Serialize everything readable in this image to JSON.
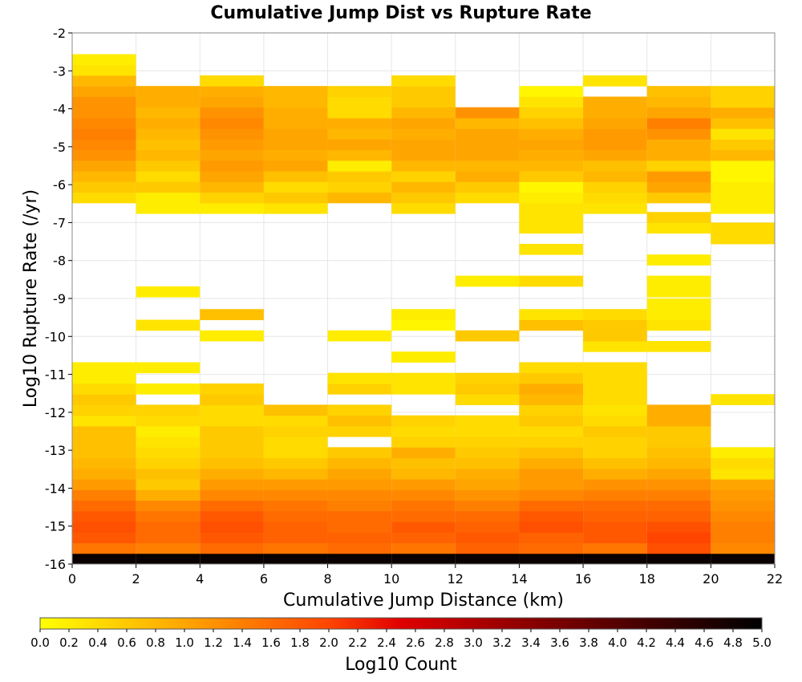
{
  "chart_data": {
    "type": "heatmap",
    "title": "Cumulative Jump Dist vs Rupture Rate",
    "xlabel": "Cumulative Jump Distance (km)",
    "ylabel": "Log10 Rupture Rate (/yr)",
    "xlim": [
      0,
      22
    ],
    "ylim": [
      -16,
      -2
    ],
    "x_bin_width": 2,
    "y_bin_width": 0.28,
    "x_ticks": [
      "0",
      "2",
      "4",
      "6",
      "8",
      "10",
      "12",
      "14",
      "16",
      "18",
      "20",
      "22"
    ],
    "y_ticks": [
      "-2",
      "-3",
      "-4",
      "-5",
      "-6",
      "-7",
      "-8",
      "-9",
      "-10",
      "-11",
      "-12",
      "-13",
      "-14",
      "-15",
      "-16"
    ],
    "colorbar": {
      "label": "Log10 Count",
      "range": [
        0.0,
        5.0
      ],
      "ticks": [
        "0.0",
        "0.2",
        "0.4",
        "0.6",
        "0.8",
        "1.0",
        "1.2",
        "1.4",
        "1.6",
        "1.8",
        "2.0",
        "2.2",
        "2.4",
        "2.6",
        "2.8",
        "3.0",
        "3.2",
        "3.4",
        "3.6",
        "3.8",
        "4.0",
        "4.2",
        "4.4",
        "4.6",
        "4.8",
        "5.0"
      ],
      "colors": [
        "#ffff00",
        "#ffa500",
        "#ff4500",
        "#e00000",
        "#800000",
        "#000000"
      ]
    },
    "grid": true,
    "cells": [
      {
        "x_bin": 0,
        "rates": [
          -16.0,
          -15.72,
          -15.44,
          -15.16,
          -14.88,
          -14.6,
          -14.32,
          -14.04,
          -13.76,
          -13.48,
          -13.2,
          -12.92,
          -12.64,
          -12.36,
          -12.08,
          -11.8,
          -11.52,
          -11.24,
          -10.96,
          -6.48,
          -6.2,
          -5.92,
          -5.64,
          -5.36,
          -5.08,
          -4.8,
          -4.52,
          -4.24,
          -3.96,
          -3.68,
          -3.4,
          -3.12,
          -2.84
        ],
        "log10_counts": [
          4.9,
          1.5,
          1.8,
          1.9,
          1.8,
          1.6,
          1.4,
          1.1,
          0.9,
          0.8,
          0.7,
          0.7,
          0.7,
          0.3,
          0.5,
          0.6,
          0.4,
          0.2,
          0.2,
          0.4,
          0.6,
          0.8,
          1.0,
          1.2,
          1.3,
          1.4,
          1.3,
          1.2,
          1.2,
          1.0,
          0.8,
          0.3,
          0.2
        ]
      },
      {
        "x_bin": 1,
        "rates": [
          -16.0,
          -15.72,
          -15.44,
          -15.16,
          -14.88,
          -14.6,
          -14.32,
          -14.04,
          -13.76,
          -13.48,
          -13.2,
          -12.92,
          -12.64,
          -12.36,
          -12.08,
          -11.52,
          -10.96,
          -9.84,
          -8.96,
          -6.76,
          -6.48,
          -6.2,
          -5.92,
          -5.64,
          -5.36,
          -5.08,
          -4.8,
          -4.52,
          -4.24,
          -3.96,
          -3.68
        ],
        "log10_counts": [
          4.9,
          1.4,
          1.6,
          1.6,
          1.5,
          1.3,
          0.9,
          0.6,
          0.7,
          0.5,
          0.4,
          0.3,
          0.2,
          0.4,
          0.5,
          0.2,
          0.2,
          0.3,
          0.2,
          0.2,
          0.2,
          0.6,
          0.4,
          0.6,
          0.8,
          0.7,
          0.8,
          0.9,
          0.8,
          0.9,
          0.9
        ]
      },
      {
        "x_bin": 2,
        "rates": [
          -16.0,
          -15.72,
          -15.44,
          -15.16,
          -14.88,
          -14.6,
          -14.32,
          -14.04,
          -13.76,
          -13.48,
          -13.2,
          -12.92,
          -12.64,
          -12.36,
          -12.08,
          -11.8,
          -11.52,
          -10.12,
          -9.56,
          -6.76,
          -6.48,
          -6.2,
          -5.92,
          -5.64,
          -5.36,
          -5.08,
          -4.8,
          -4.52,
          -4.24,
          -3.96,
          -3.68,
          -3.4
        ],
        "log10_counts": [
          4.9,
          1.6,
          1.8,
          1.9,
          1.8,
          1.6,
          1.3,
          1.1,
          0.9,
          0.7,
          0.6,
          0.6,
          0.6,
          0.4,
          0.4,
          0.6,
          0.5,
          0.2,
          0.7,
          0.2,
          0.5,
          0.8,
          1.0,
          1.1,
          1.0,
          1.1,
          1.2,
          1.3,
          1.2,
          1.0,
          0.9,
          0.4
        ]
      },
      {
        "x_bin": 3,
        "rates": [
          -16.0,
          -15.72,
          -15.44,
          -15.16,
          -14.88,
          -14.6,
          -14.32,
          -14.04,
          -13.76,
          -13.48,
          -13.2,
          -12.92,
          -12.64,
          -12.36,
          -12.08,
          -6.76,
          -6.48,
          -6.2,
          -5.92,
          -5.64,
          -5.36,
          -5.08,
          -4.8,
          -4.52,
          -4.24,
          -3.96,
          -3.68
        ],
        "log10_counts": [
          4.9,
          1.5,
          1.7,
          1.7,
          1.6,
          1.5,
          1.3,
          1.1,
          0.8,
          0.6,
          0.4,
          0.4,
          0.5,
          0.4,
          0.7,
          0.3,
          0.6,
          0.4,
          0.7,
          1.0,
          0.9,
          1.0,
          1.0,
          0.9,
          0.9,
          0.8,
          0.8
        ]
      },
      {
        "x_bin": 4,
        "rates": [
          -16.0,
          -15.72,
          -15.44,
          -15.16,
          -14.88,
          -14.6,
          -14.32,
          -14.04,
          -13.76,
          -13.48,
          -13.2,
          -12.64,
          -12.36,
          -12.08,
          -11.52,
          -11.24,
          -10.12,
          -6.48,
          -6.2,
          -5.92,
          -5.64,
          -5.36,
          -5.08,
          -4.8,
          -4.52,
          -4.24,
          -3.96,
          -3.68
        ],
        "log10_counts": [
          4.9,
          1.6,
          1.7,
          1.6,
          1.6,
          1.4,
          1.3,
          1.1,
          1.0,
          0.8,
          0.6,
          0.5,
          0.7,
          0.5,
          0.5,
          0.3,
          0.2,
          0.8,
          0.5,
          0.6,
          0.2,
          0.8,
          1.0,
          0.8,
          0.9,
          0.4,
          0.4,
          0.5
        ]
      },
      {
        "x_bin": 5,
        "rates": [
          -16.0,
          -15.72,
          -15.44,
          -15.16,
          -14.88,
          -14.6,
          -14.32,
          -14.04,
          -13.76,
          -13.48,
          -13.2,
          -12.92,
          -12.64,
          -12.36,
          -11.52,
          -11.24,
          -10.68,
          -9.84,
          -9.56,
          -6.76,
          -6.48,
          -6.2,
          -5.92,
          -5.64,
          -5.36,
          -5.08,
          -4.8,
          -4.52,
          -4.24,
          -3.96,
          -3.68,
          -3.4
        ],
        "log10_counts": [
          4.9,
          1.5,
          1.7,
          1.8,
          1.6,
          1.5,
          1.3,
          1.1,
          0.8,
          0.7,
          0.9,
          0.5,
          0.4,
          0.5,
          0.3,
          0.3,
          0.2,
          0.1,
          0.2,
          0.4,
          0.6,
          0.8,
          0.5,
          0.8,
          1.0,
          1.0,
          0.9,
          1.0,
          0.8,
          0.6,
          0.6,
          0.4
        ]
      },
      {
        "x_bin": 6,
        "rates": [
          -16.0,
          -15.72,
          -15.44,
          -15.16,
          -14.88,
          -14.6,
          -14.32,
          -14.04,
          -13.76,
          -13.48,
          -13.2,
          -12.92,
          -12.64,
          -12.36,
          -11.8,
          -11.52,
          -11.24,
          -10.12,
          -8.68,
          -6.48,
          -6.2,
          -5.92,
          -5.64,
          -5.36,
          -5.08,
          -4.8,
          -4.52,
          -4.24
        ],
        "log10_counts": [
          4.9,
          1.7,
          1.8,
          1.7,
          1.6,
          1.4,
          1.2,
          1.0,
          0.9,
          0.7,
          0.6,
          0.5,
          0.4,
          0.4,
          0.4,
          0.6,
          0.5,
          0.6,
          0.2,
          0.4,
          0.6,
          0.9,
          0.8,
          1.0,
          1.0,
          1.0,
          0.8,
          1.2
        ]
      },
      {
        "x_bin": 7,
        "rates": [
          -16.0,
          -15.72,
          -15.44,
          -15.16,
          -14.88,
          -14.6,
          -14.32,
          -14.04,
          -13.76,
          -13.48,
          -13.2,
          -12.92,
          -12.64,
          -12.36,
          -12.08,
          -11.8,
          -11.52,
          -11.24,
          -10.96,
          -9.84,
          -9.56,
          -8.68,
          -7.84,
          -7.28,
          -7.0,
          -6.76,
          -6.48,
          -6.2,
          -5.92,
          -5.64,
          -5.36,
          -5.08,
          -4.8,
          -4.52,
          -4.24,
          -3.96,
          -3.68
        ],
        "log10_counts": [
          4.9,
          1.6,
          1.7,
          1.9,
          1.8,
          1.6,
          1.3,
          1.1,
          1.1,
          0.9,
          0.7,
          0.5,
          0.4,
          0.6,
          0.5,
          0.8,
          0.9,
          0.6,
          0.4,
          0.7,
          0.3,
          0.4,
          0.3,
          0.3,
          0.3,
          0.3,
          0.2,
          0.1,
          0.6,
          0.8,
          0.9,
          1.0,
          0.9,
          0.7,
          0.5,
          0.3,
          0.1
        ]
      },
      {
        "x_bin": 8,
        "rates": [
          -16.0,
          -15.72,
          -15.44,
          -15.16,
          -14.88,
          -14.6,
          -14.32,
          -14.04,
          -13.76,
          -13.48,
          -13.2,
          -12.92,
          -12.64,
          -12.36,
          -12.08,
          -11.8,
          -11.52,
          -11.24,
          -10.96,
          -10.4,
          -10.12,
          -9.84,
          -9.56,
          -6.76,
          -6.48,
          -6.2,
          -5.92,
          -5.64,
          -5.36,
          -5.08,
          -4.8,
          -4.52,
          -4.24,
          -3.96,
          -3.4
        ],
        "log10_counts": [
          4.9,
          1.5,
          1.8,
          1.8,
          1.7,
          1.6,
          1.4,
          1.2,
          0.9,
          0.7,
          0.5,
          0.5,
          0.6,
          0.4,
          0.3,
          0.4,
          0.4,
          0.4,
          0.4,
          0.3,
          0.6,
          0.6,
          0.4,
          0.3,
          0.4,
          0.5,
          0.8,
          0.7,
          1.0,
          1.1,
          1.1,
          1.0,
          0.9,
          0.9,
          0.3
        ]
      },
      {
        "x_bin": 9,
        "rates": [
          -16.0,
          -15.72,
          -15.44,
          -15.16,
          -14.88,
          -14.6,
          -14.32,
          -14.04,
          -13.76,
          -13.48,
          -13.2,
          -12.92,
          -12.64,
          -12.36,
          -12.08,
          -10.4,
          -9.84,
          -9.56,
          -9.28,
          -8.96,
          -8.68,
          -8.12,
          -7.28,
          -7.0,
          -6.48,
          -6.2,
          -5.92,
          -5.64,
          -5.36,
          -5.08,
          -4.8,
          -4.52,
          -4.24,
          -3.96,
          -3.68
        ],
        "log10_counts": [
          4.9,
          1.9,
          2.0,
          1.9,
          1.7,
          1.6,
          1.4,
          1.2,
          1.0,
          0.8,
          0.7,
          0.6,
          0.6,
          0.9,
          0.9,
          0.3,
          0.3,
          0.2,
          0.2,
          0.2,
          0.2,
          0.2,
          0.3,
          0.5,
          0.6,
          1.0,
          1.1,
          0.5,
          0.9,
          0.9,
          1.2,
          1.4,
          1.0,
          0.8,
          0.7
        ]
      },
      {
        "x_bin": 10,
        "rates": [
          -16.0,
          -15.72,
          -15.44,
          -15.16,
          -14.88,
          -14.6,
          -14.32,
          -14.04,
          -13.76,
          -13.48,
          -13.2,
          -11.8,
          -7.56,
          -7.28,
          -6.76,
          -6.48,
          -6.2,
          -5.92,
          -5.64,
          -5.36,
          -5.08,
          -4.8,
          -4.52,
          -4.24,
          -3.96,
          -3.68
        ],
        "log10_counts": [
          4.9,
          1.3,
          1.4,
          1.4,
          1.3,
          1.2,
          1.1,
          1.0,
          0.3,
          0.4,
          0.2,
          0.3,
          0.4,
          0.4,
          0.2,
          0.2,
          0.2,
          0.1,
          0.1,
          0.8,
          0.6,
          0.3,
          0.7,
          0.9,
          0.5,
          0.5
        ]
      }
    ]
  }
}
